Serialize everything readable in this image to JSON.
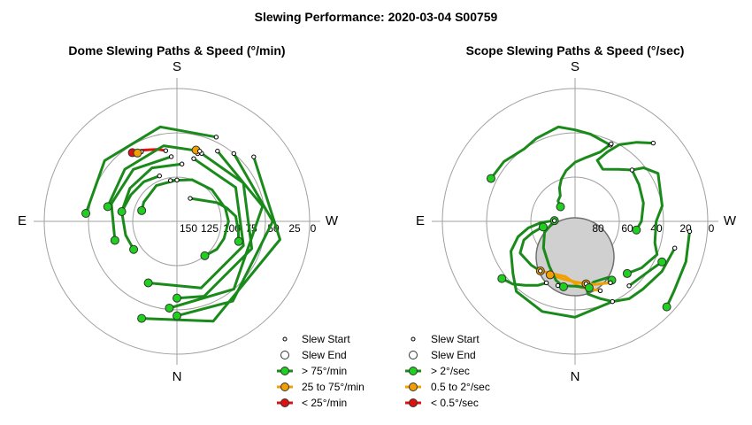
{
  "title": "Slewing Performance: 2020-03-04 S00759",
  "colors": {
    "fast": "#1fd01f",
    "medium": "#f0a000",
    "slow": "#e01010",
    "fast_line": "#1a8a1a"
  },
  "chart_data": [
    {
      "type": "scatter",
      "title": "Dome Slewing Paths & Speed (°/min)",
      "compass": {
        "top": "S",
        "bottom": "N",
        "left": "E",
        "right": "W"
      },
      "radial_ticks": [
        "150",
        "125",
        "100",
        "75",
        "50",
        "25",
        "0"
      ],
      "legend": [
        {
          "label": "Slew Start",
          "marker": "small-open"
        },
        {
          "label": "Slew End",
          "marker": "large-open"
        },
        {
          "label": "> 75°/min",
          "marker": "fast"
        },
        {
          "label": "25 to 75°/min",
          "marker": "medium"
        },
        {
          "label": "< 25°/min",
          "marker": "slow"
        }
      ],
      "slews": [
        {
          "speed": "slow",
          "path": [
            [
              41.5,
              9
            ],
            [
              39.5,
              15
            ],
            [
              38,
              21
            ],
            [
              36,
              27
            ],
            [
              34.5,
              33
            ]
          ]
        },
        {
          "speed": "medium",
          "path": [
            [
              42,
              -17
            ],
            [
              40,
              -15
            ]
          ]
        },
        {
          "speed": "medium",
          "path": [
            [
              37,
              27
            ],
            [
              36.5,
              30
            ]
          ]
        },
        {
          "speed": "fast",
          "path": [
            [
              72,
              -30
            ],
            [
              60,
              -65
            ],
            [
              55,
              -75
            ],
            [
              50,
              -85
            ],
            [
              48,
              -98
            ],
            [
              46,
              -108
            ]
          ]
        },
        {
          "speed": "fast",
          "path": [
            [
              62,
              9
            ],
            [
              60,
              -20
            ],
            [
              58,
              -48
            ],
            [
              56,
              -75
            ],
            [
              55,
              -90
            ],
            [
              56,
              -110
            ],
            [
              57,
              -125
            ],
            [
              60,
              -141
            ]
          ]
        },
        {
          "speed": "fast",
          "path": [
            [
              62,
              0
            ],
            [
              62,
              30
            ],
            [
              64,
              60
            ],
            [
              65,
              73
            ]
          ]
        },
        {
          "speed": "fast",
          "path": [
            [
              57,
              21
            ],
            [
              55,
              40
            ],
            [
              54,
              60
            ],
            [
              52,
              80
            ],
            [
              54,
              105
            ],
            [
              55,
              123
            ]
          ]
        },
        {
          "speed": "fast",
          "path": [
            [
              51,
              -5
            ],
            [
              50,
              25
            ],
            [
              51,
              55
            ],
            [
              52,
              80
            ]
          ]
        },
        {
          "speed": "fast",
          "path": [
            [
              46,
              -15
            ],
            [
              44,
              -60
            ],
            [
              42,
              -110
            ],
            [
              42,
              -160
            ],
            [
              44,
              -205
            ]
          ]
        },
        {
          "speed": "fast",
          "path": [
            [
              46,
              5
            ],
            [
              44,
              40
            ],
            [
              44,
              75
            ],
            [
              46,
              107
            ]
          ]
        },
        {
          "speed": "fast",
          "path": [
            [
              41,
              -20
            ],
            [
              38,
              -60
            ],
            [
              36,
              -110
            ],
            [
              36,
              -160
            ],
            [
              38,
              -180
            ]
          ]
        },
        {
          "speed": "fast",
          "path": [
            [
              40,
              -18
            ],
            [
              38,
              10
            ],
            [
              40,
              45
            ],
            [
              42,
              78
            ]
          ]
        },
        {
          "speed": "fast",
          "path": [
            [
              35,
              -30
            ],
            [
              31,
              -80
            ],
            [
              30,
              -140
            ],
            [
              31,
              -185
            ]
          ]
        },
        {
          "speed": "fast",
          "path": [
            [
              30,
              -40
            ],
            [
              25,
              -90
            ],
            [
              24,
              -145
            ],
            [
              26,
              -180
            ]
          ]
        },
        {
          "speed": "fast",
          "path": [
            [
              27,
              -25
            ],
            [
              25,
              10
            ],
            [
              26,
              50
            ],
            [
              28,
              85
            ]
          ]
        },
        {
          "speed": "fast",
          "path": [
            [
              22,
              -50
            ],
            [
              19,
              -100
            ],
            [
              18,
              -160
            ],
            [
              20,
              -200
            ]
          ]
        }
      ]
    },
    {
      "type": "scatter",
      "title": "Scope Slewing Paths & Speed (°/sec)",
      "compass": {
        "top": "S",
        "bottom": "N",
        "left": "E",
        "right": "W"
      },
      "radial_ticks": [
        "80",
        "60",
        "40",
        "20",
        "0"
      ],
      "legend": [
        {
          "label": "Slew Start",
          "marker": "small-open"
        },
        {
          "label": "Slew End",
          "marker": "large-open"
        },
        {
          "label": "> 2°/sec",
          "marker": "fast"
        },
        {
          "label": "0.5 to 2°/sec",
          "marker": "medium"
        },
        {
          "label": "< 0.5°/sec",
          "marker": "slow"
        }
      ],
      "moon": {
        "alt": 66,
        "az": 180,
        "radius_deg": 22
      },
      "slews": [
        {
          "speed": "fast",
          "path": [
            [
              33,
              -25
            ],
            [
              30,
              -10
            ],
            [
              28,
              0
            ],
            [
              25,
              10
            ],
            [
              28,
              25
            ],
            [
              30,
              35
            ],
            [
              27,
              50
            ],
            [
              26,
              63
            ]
          ]
        },
        {
          "speed": "fast",
          "path": [
            [
              32,
              -25
            ],
            [
              40,
              -20
            ],
            [
              46,
              -10
            ],
            [
              50,
              0
            ],
            [
              55,
              10
            ],
            [
              60,
              18
            ],
            [
              65,
              25
            ],
            [
              70,
              30
            ],
            [
              72,
              40
            ],
            [
              76,
              45
            ]
          ]
        },
        {
          "speed": "fast",
          "path": [
            [
              15,
              -45
            ],
            [
              22,
              -38
            ],
            [
              30,
              -30
            ],
            [
              38,
              -25
            ],
            [
              46,
              -20
            ],
            [
              50,
              -28
            ],
            [
              44,
              -40
            ],
            [
              38,
              -48
            ],
            [
              31,
              -52
            ],
            [
              25,
              -60
            ],
            [
              30,
              -80
            ],
            [
              35,
              -90
            ],
            [
              34,
              -105
            ],
            [
              30,
              -112
            ],
            [
              35,
              -125
            ],
            [
              40,
              -135
            ]
          ]
        },
        {
          "speed": "fast",
          "path": [
            [
              38,
              -48
            ],
            [
              40,
              -60
            ],
            [
              42,
              -75
            ],
            [
              45,
              -90
            ],
            [
              48,
              -98
            ]
          ]
        },
        {
          "speed": "fast",
          "path": [
            [
              20,
              -105
            ],
            [
              22,
              -120
            ],
            [
              25,
              -135
            ],
            [
              26,
              -145
            ],
            [
              30,
              -155
            ],
            [
              35,
              -162
            ],
            [
              40,
              -170
            ],
            [
              44,
              -170
            ],
            [
              47,
              -163
            ],
            [
              46,
              -150
            ],
            [
              43,
              -148
            ]
          ]
        },
        {
          "speed": "fast",
          "path": [
            [
              12,
              -95
            ],
            [
              10,
              -110
            ],
            [
              8,
              -125
            ],
            [
              5,
              -133
            ]
          ]
        },
        {
          "speed": "medium",
          "path": [
            [
              42,
              -150
            ],
            [
              45,
              -162
            ],
            [
              47,
              -170
            ]
          ]
        },
        {
          "speed": "medium",
          "path": [
            [
              47,
              -170
            ],
            [
              49,
              -180
            ],
            [
              50,
              -190
            ],
            [
              50,
              -205
            ]
          ]
        },
        {
          "speed": "medium",
          "path": [
            [
              40,
              -160
            ],
            [
              45,
              -175
            ],
            [
              52,
              -190
            ],
            [
              49,
              -215
            ]
          ]
        },
        {
          "speed": "fast",
          "path": [
            [
              49,
              -215
            ],
            [
              48,
              -225
            ],
            [
              47,
              -240
            ],
            [
              53,
              -250
            ],
            [
              60,
              -255
            ],
            [
              65,
              -258
            ],
            [
              68,
              -260
            ]
          ]
        },
        {
          "speed": "fast",
          "path": [
            [
              30,
              -155
            ],
            [
              25,
              -180
            ],
            [
              25,
              -200
            ],
            [
              28,
              -220
            ],
            [
              35,
              -230
            ],
            [
              42,
              -245
            ],
            [
              50,
              -255
            ],
            [
              58,
              -262
            ],
            [
              67,
              -268
            ],
            [
              76,
              -272
            ]
          ]
        },
        {
          "speed": "fast",
          "path": [
            [
              76,
              -272
            ],
            [
              68,
              -250
            ],
            [
              62,
              -230
            ],
            [
              55,
              -210
            ],
            [
              48,
              -198
            ],
            [
              45,
              -190
            ]
          ]
        },
        {
          "speed": "fast",
          "path": [
            [
              44,
              -205
            ],
            [
              40,
              -210
            ],
            [
              35,
              -218
            ],
            [
              30,
              -225
            ],
            [
              27,
              -232
            ]
          ]
        },
        {
          "speed": "fast",
          "path": [
            [
              45,
              -195
            ],
            [
              46,
              -180
            ],
            [
              44,
              -168
            ]
          ]
        },
        {
          "speed": "fast",
          "path": [
            [
              33,
              -140
            ],
            [
              30,
              -125
            ],
            [
              25,
              -115
            ]
          ]
        }
      ]
    }
  ]
}
